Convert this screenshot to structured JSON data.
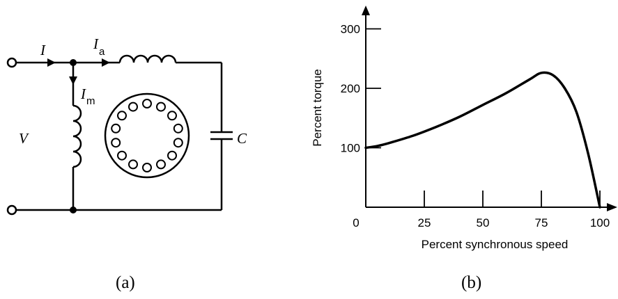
{
  "circuit": {
    "labels": {
      "line_current": "I",
      "aux_current_main": "I",
      "aux_current_sub": "a",
      "main_current_main": "I",
      "main_current_sub": "m",
      "voltage": "V",
      "capacitor": "C"
    },
    "caption": "(a)"
  },
  "chart": {
    "caption": "(b)"
  },
  "chart_data": {
    "type": "line",
    "xlabel": "Percent synchronous speed",
    "ylabel": "Percent torque",
    "x_ticks": [
      "0",
      "25",
      "50",
      "75",
      "100"
    ],
    "y_ticks": [
      "100",
      "200",
      "300"
    ],
    "xlim": [
      0,
      105
    ],
    "ylim": [
      0,
      340
    ],
    "grid": false,
    "series": [
      {
        "x": [
          0,
          5,
          10,
          20,
          30,
          40,
          50,
          60,
          70,
          75,
          80,
          85,
          90,
          95,
          100
        ],
        "y": [
          100,
          103,
          108,
          120,
          135,
          152,
          172,
          192,
          215,
          226,
          222,
          200,
          160,
          90,
          0
        ]
      }
    ]
  }
}
